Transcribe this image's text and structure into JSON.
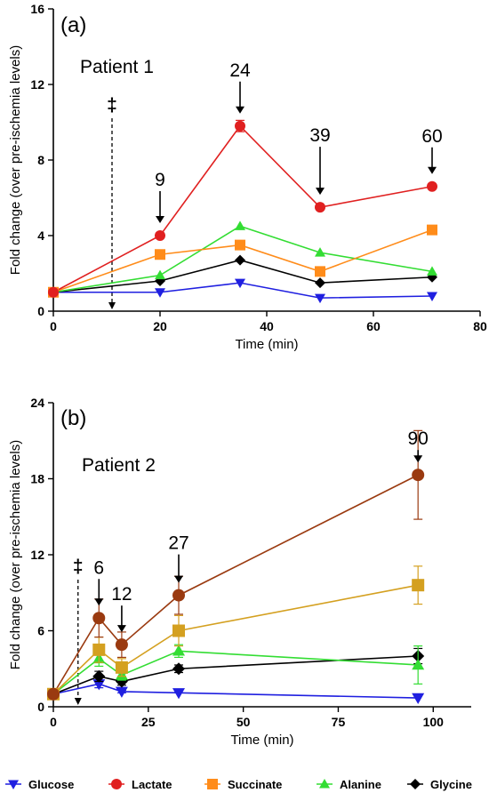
{
  "legend": [
    {
      "name": "Glucose",
      "marker": "triangle-down",
      "color": "#1f1fe0"
    },
    {
      "name": "Lactate",
      "marker": "circle",
      "color": "#e02020"
    },
    {
      "name": "Succinate",
      "marker": "square",
      "color": "#ff8c1a"
    },
    {
      "name": "Alanine",
      "marker": "triangle-up",
      "color": "#33dd33"
    },
    {
      "name": "Glycine",
      "marker": "diamond",
      "color": "#000000"
    }
  ],
  "chart_data": [
    {
      "type": "line",
      "panel_label": "(a)",
      "subtitle": "Patient 1",
      "xlabel": "Time (min)",
      "ylabel": "Fold change (over pre-ischemia levels)",
      "xlim": [
        0,
        80
      ],
      "ylim": [
        0,
        16
      ],
      "xticks": [
        0,
        20,
        40,
        60,
        80
      ],
      "yticks": [
        0,
        4,
        8,
        12,
        16
      ],
      "x": [
        0,
        20,
        35,
        50,
        71
      ],
      "series": [
        {
          "name": "Glucose",
          "color": "#1f1fe0",
          "marker": "triangle-down",
          "values": [
            1.0,
            1.0,
            1.5,
            0.7,
            0.8
          ]
        },
        {
          "name": "Glycine",
          "color": "#000000",
          "marker": "diamond",
          "values": [
            1.0,
            1.6,
            2.7,
            1.5,
            1.8
          ]
        },
        {
          "name": "Alanine",
          "color": "#33dd33",
          "marker": "triangle-up",
          "values": [
            1.0,
            1.9,
            4.5,
            3.1,
            2.1
          ]
        },
        {
          "name": "Succinate",
          "color": "#ff8c1a",
          "marker": "square",
          "values": [
            1.0,
            3.0,
            3.5,
            2.1,
            4.3
          ]
        },
        {
          "name": "Lactate",
          "color": "#e02020",
          "marker": "circle",
          "values": [
            1.0,
            4.0,
            9.8,
            5.5,
            6.6
          ],
          "errors": [
            0,
            0,
            0.3,
            0,
            0
          ]
        }
      ],
      "markers": [
        {
          "label": "9",
          "x": 20,
          "y": 4.0
        },
        {
          "label": "24",
          "x": 35,
          "y": 9.8
        },
        {
          "label": "39",
          "x": 50,
          "y": 5.5
        },
        {
          "label": "60",
          "x": 71,
          "y": 6.6
        }
      ],
      "dagger": {
        "symbol": "‡",
        "x": 11,
        "color": "#e02020"
      }
    },
    {
      "type": "line",
      "panel_label": "(b)",
      "subtitle": "Patient 2",
      "xlabel": "Time (min)",
      "ylabel": "Fold change (over pre-ischemia levels)",
      "xlim": [
        0,
        110
      ],
      "ylim": [
        0,
        24
      ],
      "xticks": [
        0,
        25,
        50,
        75,
        100
      ],
      "yticks": [
        0,
        6,
        12,
        18,
        24
      ],
      "x": [
        0,
        12,
        18,
        33,
        96
      ],
      "series": [
        {
          "name": "Glucose",
          "color": "#1f1fe0",
          "marker": "triangle-down",
          "values": [
            1.0,
            1.8,
            1.2,
            1.1,
            0.7
          ],
          "errors": [
            0,
            0.3,
            0.1,
            0,
            0
          ]
        },
        {
          "name": "Glycine",
          "color": "#000000",
          "marker": "diamond",
          "values": [
            1.0,
            2.4,
            2.0,
            3.0,
            4.0
          ],
          "errors": [
            0,
            0.4,
            0.3,
            0.3,
            0.6
          ]
        },
        {
          "name": "Alanine",
          "color": "#33dd33",
          "marker": "triangle-up",
          "values": [
            1.0,
            3.8,
            2.5,
            4.4,
            3.3
          ],
          "errors": [
            0,
            0.6,
            0.4,
            0.5,
            1.5
          ]
        },
        {
          "name": "Succinate",
          "color": "#d4a020",
          "marker": "square",
          "values": [
            1.0,
            4.5,
            3.1,
            6.0,
            9.6
          ],
          "errors": [
            0,
            1.0,
            0.7,
            1.2,
            1.5
          ]
        },
        {
          "name": "Lactate",
          "color": "#9a3a10",
          "marker": "circle",
          "values": [
            1.0,
            7.0,
            4.9,
            8.8,
            18.3
          ],
          "errors": [
            0,
            1.5,
            1.0,
            1.5,
            3.5
          ]
        }
      ],
      "markers": [
        {
          "label": "6",
          "x": 12,
          "y": 7.0
        },
        {
          "label": "12",
          "x": 18,
          "y": 4.9
        },
        {
          "label": "27",
          "x": 33,
          "y": 8.8
        },
        {
          "label": "90",
          "x": 96,
          "y": 18.3
        }
      ],
      "dagger": {
        "symbol": "‡",
        "x": 6.5,
        "color": "#9a3a10"
      }
    }
  ]
}
